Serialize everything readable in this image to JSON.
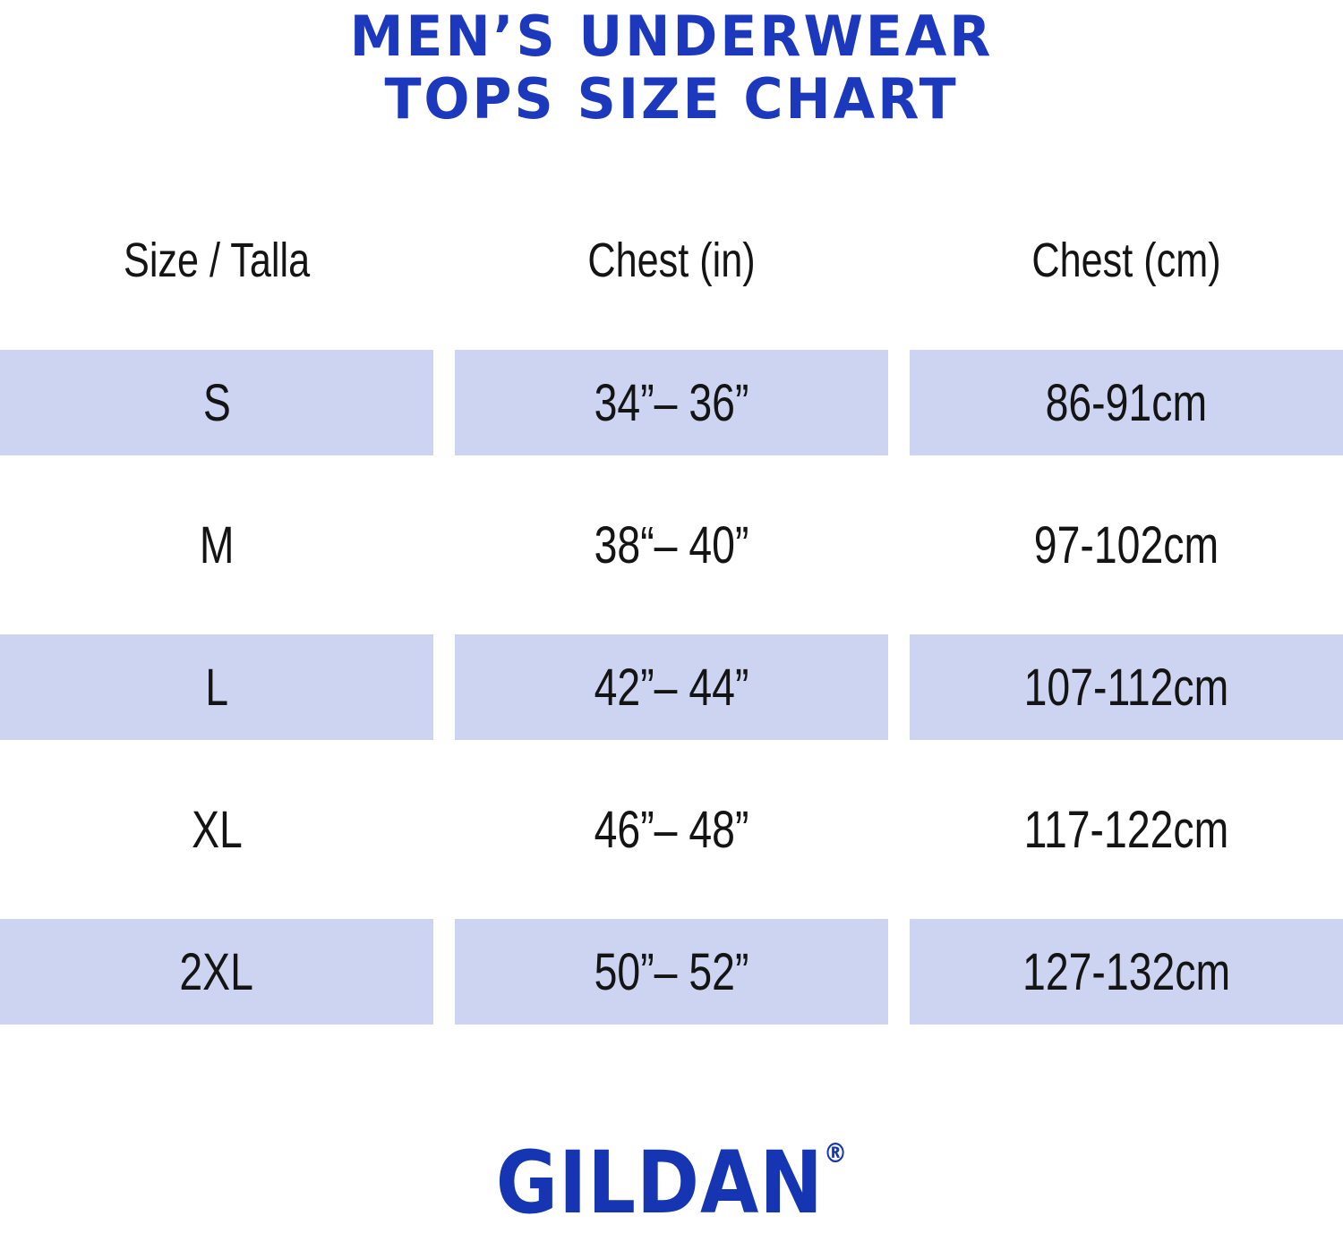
{
  "title": {
    "line1": "MEN’S UNDERWEAR",
    "line2": "TOPS SIZE CHART"
  },
  "chart_data": {
    "type": "table",
    "title": "MEN’S UNDERWEAR TOPS SIZE CHART",
    "columns": [
      "Size / Talla",
      "Chest (in)",
      "Chest (cm)"
    ],
    "rows": [
      {
        "size": "S",
        "chest_in": "34”– 36”",
        "chest_cm": "86-91cm",
        "shaded": true
      },
      {
        "size": "M",
        "chest_in": "38“– 40”",
        "chest_cm": "97-102cm",
        "shaded": false
      },
      {
        "size": "L",
        "chest_in": "42”– 44”",
        "chest_cm": "107-112cm",
        "shaded": true
      },
      {
        "size": "XL",
        "chest_in": "46”– 48”",
        "chest_cm": "117-122cm",
        "shaded": false
      },
      {
        "size": "2XL",
        "chest_in": "50”– 52”",
        "chest_cm": "127-132cm",
        "shaded": true
      }
    ]
  },
  "footer": {
    "brand": "GILDAN",
    "registered_mark": "®"
  },
  "colors": {
    "title_blue": "#1c38bd",
    "logo_blue": "#1535b2",
    "row_shade": "#ccd4f1",
    "text_color": "#141414"
  }
}
